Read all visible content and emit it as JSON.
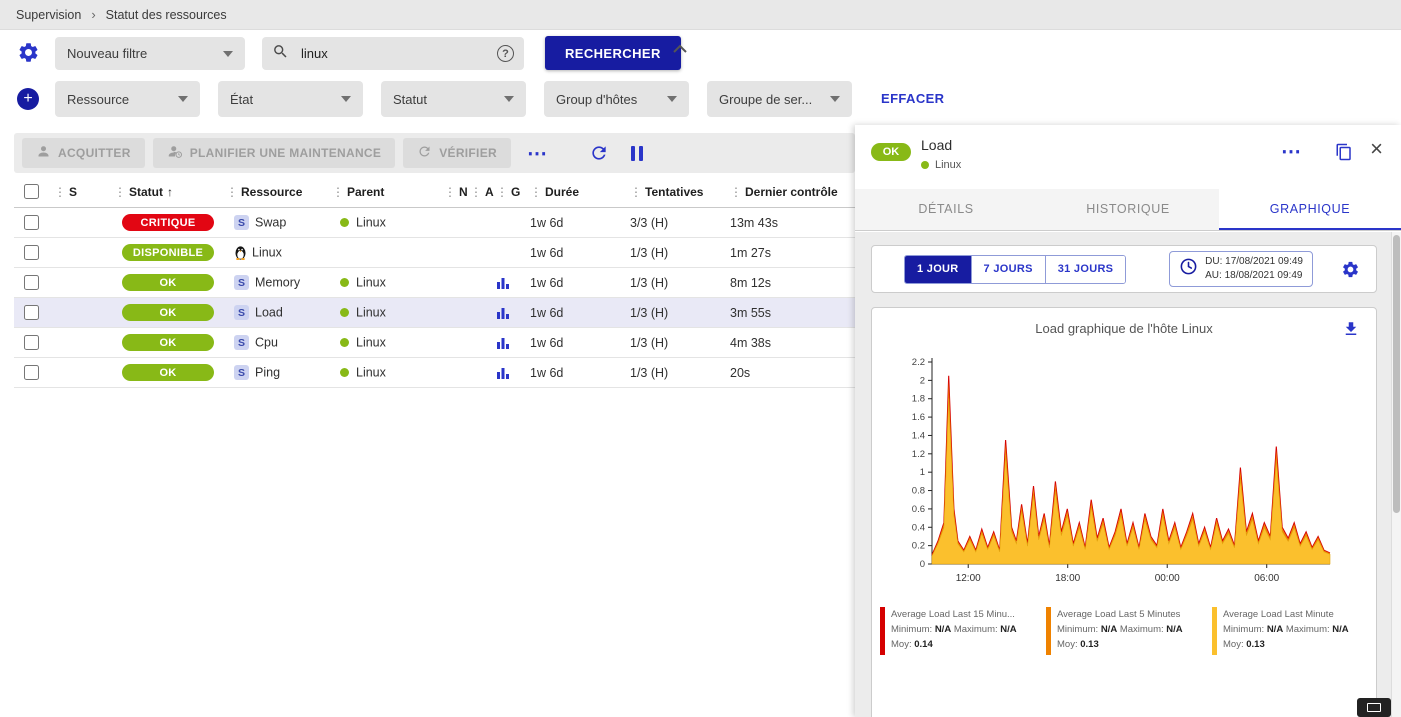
{
  "colors": {
    "navy": "#171ca1",
    "accent": "#2a35c9",
    "ok_green": "#88b917",
    "critical_red": "#e20613",
    "selected_row": "#e9e9f6"
  },
  "icons": {
    "more": "⋯",
    "close": "×",
    "sort_asc": "↑",
    "drag_handle": "⋮",
    "help": "?",
    "breadcrumb_sep": "›",
    "plus": "+"
  },
  "breadcrumb": {
    "items": [
      "Supervision",
      "Statut des ressources"
    ]
  },
  "filters": {
    "saved_filter": "Nouveau filtre",
    "search_value": "linux",
    "search_button": "RECHERCHER",
    "clear_button": "EFFACER",
    "criteria": [
      "Ressource",
      "État",
      "Statut",
      "Group d'hôtes",
      "Groupe de ser..."
    ]
  },
  "toolbar": {
    "acknowledge": "ACQUITTER",
    "maintenance": "PLANIFIER UNE MAINTENANCE",
    "check": "VÉRIFIER"
  },
  "table": {
    "columns": [
      {
        "key": "severity",
        "label": "S"
      },
      {
        "key": "status",
        "label": "Statut",
        "sorted": "asc"
      },
      {
        "key": "resource",
        "label": "Ressource"
      },
      {
        "key": "parent",
        "label": "Parent"
      },
      {
        "key": "notification",
        "label": "N"
      },
      {
        "key": "ack",
        "label": "A"
      },
      {
        "key": "graph",
        "label": "G"
      },
      {
        "key": "duration",
        "label": "Durée"
      },
      {
        "key": "tries",
        "label": "Tentatives"
      },
      {
        "key": "last_check",
        "label": "Dernier contrôle"
      }
    ],
    "rows": [
      {
        "status": "CRITIQUE",
        "status_color": "#e20613",
        "type": "service",
        "resource": "Swap",
        "parent": "Linux",
        "graph": false,
        "duration": "1w 6d",
        "tries": "3/3 (H)",
        "last_check": "13m 43s",
        "selected": false
      },
      {
        "status": "DISPONIBLE",
        "status_color": "#88b917",
        "type": "host",
        "resource": "Linux",
        "parent": "",
        "graph": false,
        "duration": "1w 6d",
        "tries": "1/3 (H)",
        "last_check": "1m 27s",
        "selected": false
      },
      {
        "status": "OK",
        "status_color": "#88b917",
        "type": "service",
        "resource": "Memory",
        "parent": "Linux",
        "graph": true,
        "duration": "1w 6d",
        "tries": "1/3 (H)",
        "last_check": "8m 12s",
        "selected": false
      },
      {
        "status": "OK",
        "status_color": "#88b917",
        "type": "service",
        "resource": "Load",
        "parent": "Linux",
        "graph": true,
        "duration": "1w 6d",
        "tries": "1/3 (H)",
        "last_check": "3m 55s",
        "selected": true
      },
      {
        "status": "OK",
        "status_color": "#88b917",
        "type": "service",
        "resource": "Cpu",
        "parent": "Linux",
        "graph": true,
        "duration": "1w 6d",
        "tries": "1/3 (H)",
        "last_check": "4m 38s",
        "selected": false
      },
      {
        "status": "OK",
        "status_color": "#88b917",
        "type": "service",
        "resource": "Ping",
        "parent": "Linux",
        "graph": true,
        "duration": "1w 6d",
        "tries": "1/3 (H)",
        "last_check": "20s",
        "selected": false
      }
    ]
  },
  "panel": {
    "status": "OK",
    "title": "Load",
    "subtitle": "Linux",
    "tabs": [
      {
        "key": "details",
        "label": "DÉTAILS",
        "active": false
      },
      {
        "key": "historique",
        "label": "HISTORIQUE",
        "active": false
      },
      {
        "key": "graphique",
        "label": "GRAPHIQUE",
        "active": true
      }
    ],
    "time_buttons": [
      {
        "key": "1-jour",
        "label": "1 JOUR",
        "active": true
      },
      {
        "key": "7-jours",
        "label": "7 JOURS",
        "active": false
      },
      {
        "key": "31-jours",
        "label": "31 JOURS",
        "active": false
      }
    ],
    "date_from": "DU: 17/08/2021 09:49",
    "date_to": "AU: 18/08/2021 09:49"
  },
  "chart_data": {
    "type": "area",
    "title": "Load graphique de l'hôte Linux",
    "ylim": [
      0,
      2.2
    ],
    "y_ticks": [
      0,
      0.2,
      0.4,
      0.6,
      0.8,
      1,
      1.2,
      1.4,
      1.6,
      1.8,
      2,
      2.2
    ],
    "x_ticks": [
      {
        "label": "12:00",
        "pos": 0.091
      },
      {
        "label": "18:00",
        "pos": 0.341
      },
      {
        "label": "00:00",
        "pos": 0.591
      },
      {
        "label": "06:00",
        "pos": 0.841
      }
    ],
    "legend_labels": {
      "min": "Minimum:",
      "max": "Maximum:",
      "avg": "Moy:"
    },
    "series": [
      {
        "name": "Average Load Last 15 Minu...",
        "color": "#d50000",
        "min": "N/A",
        "max": "N/A",
        "avg": "0.14"
      },
      {
        "name": "Average Load Last 5 Minutes",
        "color": "#ef8200",
        "min": "N/A",
        "max": "N/A",
        "avg": "0.13"
      },
      {
        "name": "Average Load Last Minute",
        "color": "#fbc02d",
        "min": "N/A",
        "max": "N/A",
        "avg": "0.13"
      }
    ],
    "points": [
      [
        0.0,
        0.1
      ],
      [
        0.015,
        0.25
      ],
      [
        0.03,
        0.45
      ],
      [
        0.042,
        2.05
      ],
      [
        0.055,
        0.6
      ],
      [
        0.065,
        0.25
      ],
      [
        0.08,
        0.15
      ],
      [
        0.095,
        0.3
      ],
      [
        0.11,
        0.15
      ],
      [
        0.125,
        0.38
      ],
      [
        0.14,
        0.18
      ],
      [
        0.155,
        0.35
      ],
      [
        0.17,
        0.15
      ],
      [
        0.185,
        1.35
      ],
      [
        0.2,
        0.4
      ],
      [
        0.212,
        0.25
      ],
      [
        0.225,
        0.65
      ],
      [
        0.24,
        0.22
      ],
      [
        0.255,
        0.85
      ],
      [
        0.268,
        0.3
      ],
      [
        0.282,
        0.55
      ],
      [
        0.295,
        0.2
      ],
      [
        0.31,
        0.9
      ],
      [
        0.325,
        0.35
      ],
      [
        0.34,
        0.6
      ],
      [
        0.355,
        0.22
      ],
      [
        0.37,
        0.45
      ],
      [
        0.385,
        0.18
      ],
      [
        0.4,
        0.7
      ],
      [
        0.415,
        0.28
      ],
      [
        0.43,
        0.5
      ],
      [
        0.445,
        0.18
      ],
      [
        0.46,
        0.35
      ],
      [
        0.475,
        0.6
      ],
      [
        0.49,
        0.22
      ],
      [
        0.505,
        0.45
      ],
      [
        0.52,
        0.18
      ],
      [
        0.535,
        0.55
      ],
      [
        0.55,
        0.3
      ],
      [
        0.565,
        0.2
      ],
      [
        0.58,
        0.6
      ],
      [
        0.595,
        0.25
      ],
      [
        0.61,
        0.45
      ],
      [
        0.625,
        0.18
      ],
      [
        0.64,
        0.35
      ],
      [
        0.655,
        0.55
      ],
      [
        0.67,
        0.22
      ],
      [
        0.685,
        0.4
      ],
      [
        0.7,
        0.18
      ],
      [
        0.715,
        0.5
      ],
      [
        0.73,
        0.25
      ],
      [
        0.745,
        0.38
      ],
      [
        0.76,
        0.2
      ],
      [
        0.775,
        1.05
      ],
      [
        0.79,
        0.35
      ],
      [
        0.805,
        0.55
      ],
      [
        0.82,
        0.25
      ],
      [
        0.835,
        0.45
      ],
      [
        0.85,
        0.3
      ],
      [
        0.865,
        1.28
      ],
      [
        0.88,
        0.4
      ],
      [
        0.895,
        0.28
      ],
      [
        0.91,
        0.45
      ],
      [
        0.925,
        0.22
      ],
      [
        0.94,
        0.35
      ],
      [
        0.955,
        0.18
      ],
      [
        0.97,
        0.3
      ],
      [
        0.985,
        0.15
      ],
      [
        1.0,
        0.12
      ]
    ]
  }
}
